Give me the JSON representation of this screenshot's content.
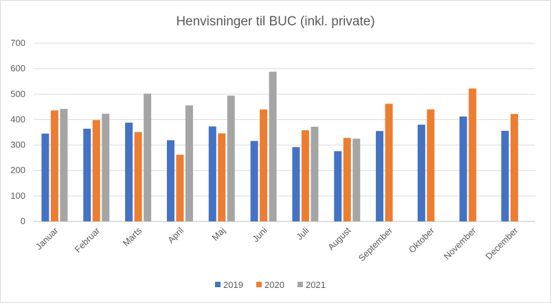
{
  "chart_data": {
    "type": "bar",
    "title": "Henvisninger til BUC (inkl. private)",
    "categories": [
      "Januar",
      "Februar",
      "Marts",
      "April",
      "Maj",
      "Juni",
      "Juli",
      "August",
      "September",
      "Oktober",
      "November",
      "December"
    ],
    "series": [
      {
        "name": "2019",
        "color": "#4472c4",
        "values": [
          345,
          364,
          388,
          319,
          373,
          316,
          292,
          276,
          355,
          380,
          412,
          356
        ]
      },
      {
        "name": "2020",
        "color": "#ed7d31",
        "values": [
          436,
          398,
          351,
          262,
          346,
          440,
          358,
          328,
          462,
          440,
          522,
          422
        ]
      },
      {
        "name": "2021",
        "color": "#a5a5a5",
        "values": [
          442,
          423,
          502,
          456,
          494,
          588,
          372,
          325,
          null,
          null,
          null,
          null
        ]
      }
    ],
    "ylim": [
      0,
      700
    ],
    "yticks": [
      0,
      100,
      200,
      300,
      400,
      500,
      600,
      700
    ],
    "grid": true,
    "legend": "bottom"
  }
}
